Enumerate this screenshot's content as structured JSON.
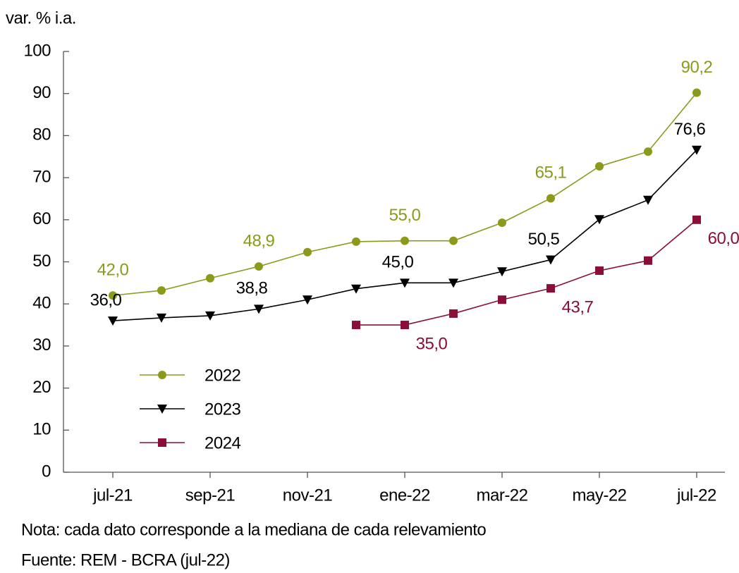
{
  "chart_data": {
    "type": "line",
    "y_label": "var. % i.a.",
    "categories": [
      "jul-21",
      null,
      "sep-21",
      null,
      "nov-21",
      null,
      "ene-22",
      null,
      "mar-22",
      null,
      "may-22",
      null,
      "jul-22"
    ],
    "ylim": [
      0,
      100
    ],
    "yticks": [
      0,
      10,
      20,
      30,
      40,
      50,
      60,
      70,
      80,
      90,
      100
    ],
    "legend": "bottom-left",
    "series": [
      {
        "name": "2022",
        "color": "#8b9a1b",
        "marker": "circle",
        "values": [
          42.0,
          43.2,
          46.1,
          48.9,
          52.3,
          54.8,
          55.0,
          55.0,
          59.3,
          65.1,
          72.7,
          76.2,
          90.2
        ],
        "value_labels": [
          "42,0",
          null,
          null,
          "48,9",
          null,
          null,
          "55,0",
          null,
          null,
          "65,1",
          null,
          null,
          "90,2"
        ]
      },
      {
        "name": "2023",
        "color": "#000000",
        "marker": "triangle-down",
        "values": [
          36.0,
          36.7,
          37.2,
          38.8,
          41.0,
          43.6,
          45.0,
          45.0,
          47.7,
          50.5,
          60.1,
          64.7,
          76.6
        ],
        "value_labels": [
          "36,0",
          null,
          null,
          "38,8",
          null,
          null,
          "45,0",
          null,
          null,
          "50,5",
          null,
          null,
          "76,6"
        ]
      },
      {
        "name": "2024",
        "color": "#8b0e3a",
        "marker": "square",
        "values": [
          null,
          null,
          null,
          null,
          null,
          35.0,
          35.0,
          37.7,
          41.0,
          43.7,
          47.9,
          50.3,
          60.0
        ],
        "value_labels": [
          null,
          null,
          null,
          null,
          null,
          null,
          "35,0",
          null,
          null,
          "43,7",
          null,
          null,
          "60,0"
        ]
      }
    ],
    "notes": [
      "Nota: cada dato corresponde a la mediana de cada relevamiento",
      "Fuente: REM - BCRA (jul-22)"
    ]
  }
}
